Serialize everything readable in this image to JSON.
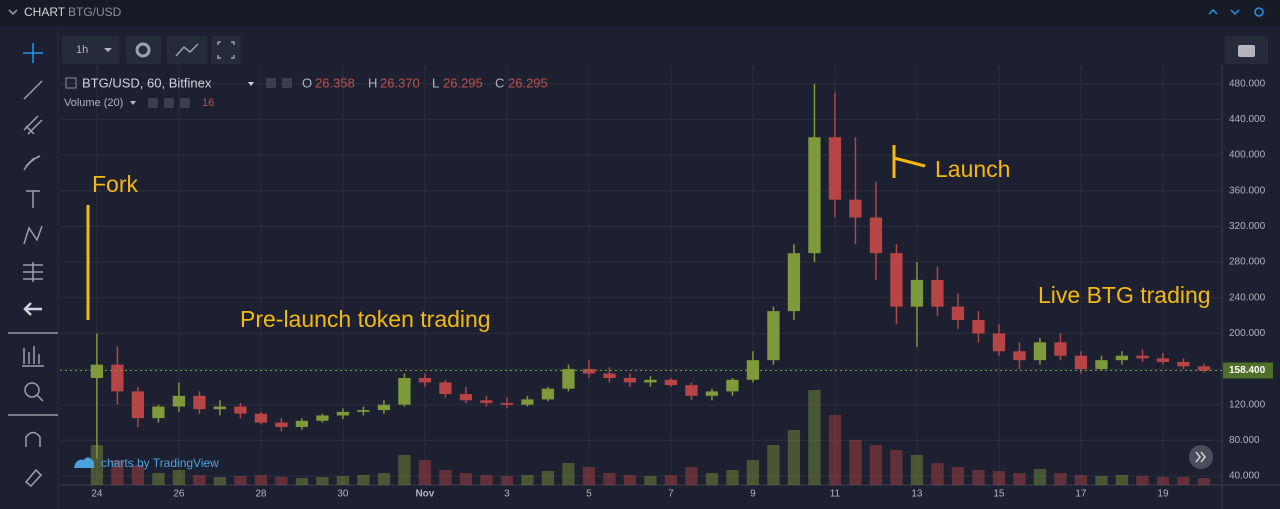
{
  "header": {
    "title": "CHART",
    "symbol": "BTG/USD"
  },
  "toolbar": {
    "interval": "1h"
  },
  "chart_data": {
    "type": "candlestick",
    "legend": {
      "symbol": "BTG/USD, 60, Bitfinex",
      "open_label": "O",
      "open": "26.358",
      "high_label": "H",
      "high": "26.370",
      "low_label": "L",
      "low": "26.295",
      "close_label": "C",
      "close": "26.295"
    },
    "volume_legend": {
      "label": "Volume (20)",
      "value": "16"
    },
    "annotations": {
      "fork": "Fork",
      "prelaunch": "Pre-launch token trading",
      "launch": "Launch",
      "live": "Live BTG trading"
    },
    "watermark": "charts by TradingView",
    "colors": {
      "up": "#7f9a3a",
      "down": "#b84545"
    },
    "grid": true,
    "x": [
      24,
      24.5,
      25,
      25.5,
      26,
      26.5,
      27,
      27.5,
      28,
      28.5,
      29,
      29.5,
      30,
      30.5,
      31,
      31.5,
      32,
      32.5,
      33,
      33.5,
      34,
      34.5,
      35,
      35.5,
      36,
      36.5,
      37,
      37.5,
      38,
      38.5,
      39,
      39.5,
      40,
      40.5,
      41,
      41.5,
      42,
      42.5,
      43,
      43.5,
      44,
      44.5,
      45,
      45.5,
      46,
      46.5,
      47,
      47.5,
      48,
      48.5,
      49,
      49.5,
      50,
      50.5,
      51
    ],
    "open": [
      150,
      165,
      135,
      105,
      118,
      130,
      115,
      118,
      110,
      100,
      95,
      102,
      108,
      112,
      114,
      120,
      150,
      145,
      132,
      125,
      122,
      120,
      126,
      138,
      160,
      155,
      150,
      145,
      148,
      142,
      130,
      135,
      148,
      170,
      225,
      290,
      420,
      350,
      330,
      290,
      230,
      260,
      230,
      215,
      200,
      180,
      170,
      190,
      175,
      160,
      170,
      175,
      172,
      168,
      163
    ],
    "high": [
      200,
      185,
      140,
      120,
      145,
      135,
      125,
      122,
      112,
      105,
      105,
      110,
      116,
      118,
      125,
      155,
      155,
      148,
      140,
      130,
      128,
      130,
      140,
      165,
      170,
      162,
      155,
      152,
      150,
      145,
      138,
      150,
      180,
      230,
      300,
      480,
      470,
      420,
      370,
      300,
      280,
      275,
      245,
      225,
      210,
      190,
      195,
      200,
      180,
      175,
      180,
      182,
      178,
      172,
      166
    ],
    "low": [
      60,
      120,
      95,
      100,
      112,
      110,
      108,
      105,
      98,
      90,
      92,
      100,
      104,
      108,
      110,
      118,
      140,
      128,
      122,
      118,
      116,
      118,
      124,
      135,
      150,
      145,
      140,
      140,
      140,
      125,
      125,
      130,
      145,
      165,
      215,
      280,
      330,
      300,
      260,
      210,
      185,
      220,
      205,
      190,
      175,
      160,
      165,
      170,
      155,
      158,
      165,
      168,
      165,
      160,
      156
    ],
    "close": [
      165,
      135,
      105,
      118,
      130,
      115,
      118,
      110,
      100,
      95,
      102,
      108,
      112,
      114,
      120,
      150,
      145,
      132,
      125,
      122,
      120,
      126,
      138,
      160,
      155,
      150,
      145,
      148,
      142,
      130,
      135,
      148,
      170,
      225,
      290,
      420,
      350,
      330,
      290,
      230,
      260,
      230,
      215,
      200,
      180,
      170,
      190,
      175,
      160,
      170,
      175,
      172,
      168,
      163,
      158.4
    ],
    "volume": [
      40,
      25,
      20,
      12,
      15,
      10,
      8,
      9,
      10,
      8,
      7,
      8,
      9,
      10,
      12,
      30,
      25,
      15,
      12,
      10,
      9,
      10,
      14,
      22,
      18,
      12,
      10,
      9,
      10,
      18,
      12,
      15,
      25,
      40,
      55,
      95,
      70,
      45,
      40,
      35,
      30,
      22,
      18,
      15,
      14,
      12,
      16,
      12,
      10,
      9,
      10,
      9,
      8,
      8,
      7
    ],
    "xlim": [
      23.1,
      51.44
    ],
    "xticks": [
      24,
      26,
      28,
      30,
      {
        "value": 32,
        "label": "Nov"
      },
      {
        "value": 34,
        "label": "3"
      },
      {
        "value": 36,
        "label": "5"
      },
      {
        "value": 38,
        "label": "7"
      },
      {
        "value": 40,
        "label": "9"
      },
      {
        "value": 42,
        "label": "11"
      },
      {
        "value": 44,
        "label": "13"
      },
      {
        "value": 46,
        "label": "15"
      },
      {
        "value": 48,
        "label": "17"
      },
      {
        "value": 50,
        "label": "19"
      }
    ],
    "ylim": [
      30,
      501
    ],
    "yticks": [
      {
        "value": 40,
        "label": "40.000"
      },
      {
        "value": 80,
        "label": "80.000"
      },
      {
        "value": 120,
        "label": "120.000"
      },
      {
        "value": 160,
        "label": "160.000"
      },
      {
        "value": 200,
        "label": "200.000"
      },
      {
        "value": 240,
        "label": "240.000"
      },
      {
        "value": 280,
        "label": "280.000"
      },
      {
        "value": 320,
        "label": "320.000"
      },
      {
        "value": 360,
        "label": "360.000"
      },
      {
        "value": 400,
        "label": "400.000"
      },
      {
        "value": 440,
        "label": "440.000"
      },
      {
        "value": 480,
        "label": "480.000"
      }
    ],
    "last_price": {
      "value": 158.4,
      "label": "158.400"
    }
  }
}
